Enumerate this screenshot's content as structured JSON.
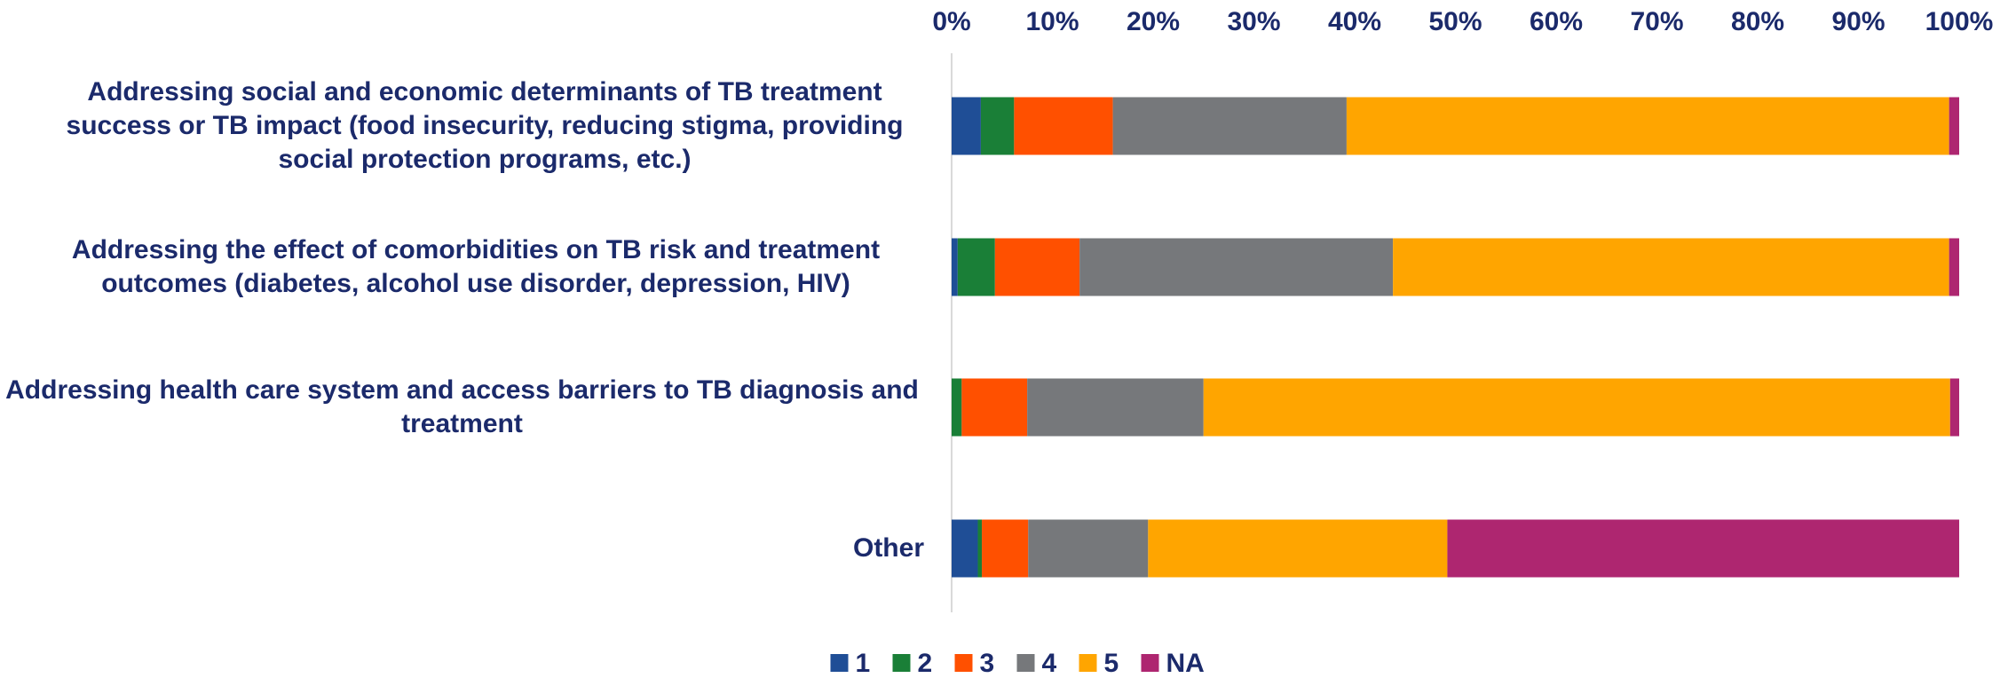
{
  "chart_data": {
    "type": "stacked-barh",
    "categories": [
      "Addressing social and economic determinants of TB treatment success or TB impact (food insecurity, reducing stigma, providing social protection programs, etc.)",
      "Addressing the effect of comorbidities on TB risk and treatment outcomes (diabetes, alcohol use disorder, depression, HIV)",
      "Addressing health care system and access barriers to TB diagnosis and treatment",
      "Other"
    ],
    "series": [
      {
        "name": "1",
        "color": "#1f4e96",
        "values": [
          2.9,
          0.6,
          0,
          2.6
        ]
      },
      {
        "name": "2",
        "color": "#1a7f37",
        "values": [
          3.3,
          3.7,
          1.0,
          0.4
        ]
      },
      {
        "name": "3",
        "color": "#ff5000",
        "values": [
          9.8,
          8.4,
          6.5,
          4.6
        ]
      },
      {
        "name": "4",
        "color": "#76787b",
        "values": [
          23.2,
          31.1,
          17.5,
          11.9
        ]
      },
      {
        "name": "5",
        "color": "#ffa500",
        "values": [
          59.8,
          55.2,
          74.1,
          29.7
        ]
      },
      {
        "name": "NA",
        "color": "#ae2670",
        "values": [
          1.0,
          1.0,
          0.9,
          50.8
        ]
      }
    ],
    "xlim": [
      0,
      100
    ],
    "xticks": [
      {
        "value": 0,
        "label": "0%"
      },
      {
        "value": 10,
        "label": "10%"
      },
      {
        "value": 20,
        "label": "20%"
      },
      {
        "value": 30,
        "label": "30%"
      },
      {
        "value": 40,
        "label": "40%"
      },
      {
        "value": 50,
        "label": "50%"
      },
      {
        "value": 60,
        "label": "60%"
      },
      {
        "value": 70,
        "label": "70%"
      },
      {
        "value": 80,
        "label": "80%"
      },
      {
        "value": 90,
        "label": "90%"
      },
      {
        "value": 100,
        "label": "100%"
      }
    ],
    "legend": "bottom"
  }
}
